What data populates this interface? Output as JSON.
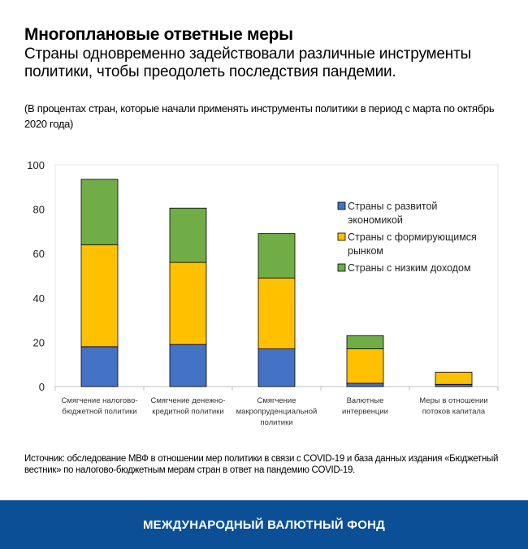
{
  "header": {
    "title": "Многоплановые ответные меры",
    "subtitle": "Страны одновременно задействовали различные инструменты политики, чтобы преодолеть последствия пандемии.",
    "note": "(В процентах стран, которые начали применять инструменты политики в период с марта по октябрь 2020 года)"
  },
  "chart_data": {
    "type": "bar",
    "stacked": true,
    "categories": [
      [
        "Смягчение налогово-",
        "бюджетной политики"
      ],
      [
        "Смягчение денежно-",
        "кредитной политики"
      ],
      [
        "Смягчение",
        "макропруденциальной",
        "политики"
      ],
      [
        "Валютные",
        "интервенции"
      ],
      [
        "Меры в отношении",
        "потоков капитала"
      ]
    ],
    "series": [
      {
        "name": [
          "Страны с развитой",
          "экономикой"
        ],
        "color": "#4472C4",
        "values": [
          18,
          19,
          17,
          1.5,
          1
        ]
      },
      {
        "name": [
          "Страны с формирующимся",
          "рынком"
        ],
        "color": "#FFC000",
        "values": [
          46,
          37,
          32,
          15.5,
          5.5
        ]
      },
      {
        "name": [
          "Страны с низким доходом"
        ],
        "color": "#70AD47",
        "values": [
          29.5,
          24.5,
          20,
          6,
          0
        ]
      }
    ],
    "ylim": [
      0,
      100
    ],
    "yticks": [
      0,
      20,
      40,
      60,
      80,
      100
    ],
    "grid": false,
    "legend": "right"
  },
  "source": "Источник: обследование МВФ в отношении мер политики в связи с COVID-19 и база данных издания «Бюджетный вестник» по налогово-бюджетным мерам стран в ответ на пандемию COVID-19.",
  "footer": {
    "org": "МЕЖДУНАРОДНЫЙ ВАЛЮТНЫЙ ФОНД",
    "color": "#0B4F96"
  }
}
